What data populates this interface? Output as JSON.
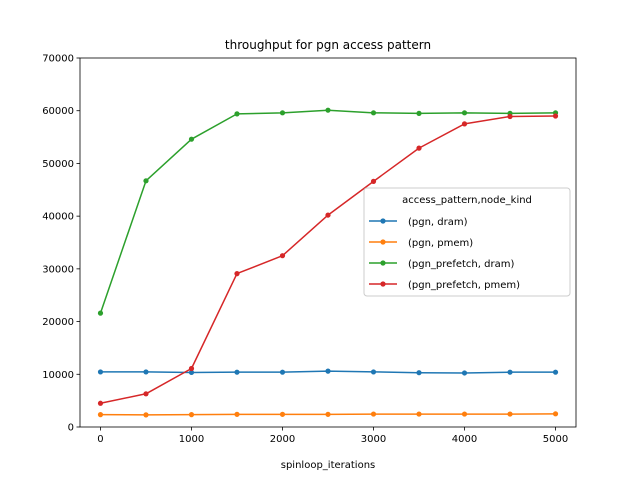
{
  "chart_data": {
    "type": "line",
    "title": "throughput for pgn access pattern",
    "xlabel": "spinloop_iterations",
    "ylabel": "",
    "xlim": [
      -225,
      5225
    ],
    "ylim": [
      0,
      70000
    ],
    "x_ticks": [
      0,
      1000,
      2000,
      3000,
      4000,
      5000
    ],
    "y_ticks": [
      0,
      10000,
      20000,
      30000,
      40000,
      50000,
      60000,
      70000
    ],
    "grid": false,
    "legend": {
      "title": "access_pattern,node_kind",
      "placement": "center-right"
    },
    "x": [
      0,
      500,
      1000,
      1500,
      2000,
      2500,
      3000,
      3500,
      4000,
      4500,
      5000
    ],
    "series": [
      {
        "name": "(pgn, dram)",
        "color": "#1f77b4",
        "values": [
          10450,
          10450,
          10350,
          10400,
          10400,
          10600,
          10450,
          10300,
          10250,
          10400,
          10400
        ]
      },
      {
        "name": "(pgn, pmem)",
        "color": "#ff7f0e",
        "values": [
          2350,
          2300,
          2350,
          2400,
          2400,
          2400,
          2450,
          2450,
          2450,
          2450,
          2500
        ]
      },
      {
        "name": "(pgn_prefetch, dram)",
        "color": "#2ca02c",
        "values": [
          21600,
          46700,
          54600,
          59400,
          59600,
          60100,
          59600,
          59500,
          59600,
          59500,
          59600
        ]
      },
      {
        "name": "(pgn_prefetch, pmem)",
        "color": "#d62728",
        "values": [
          4500,
          6300,
          11100,
          29100,
          32500,
          40200,
          46600,
          52900,
          57500,
          58900,
          59000
        ]
      }
    ]
  }
}
